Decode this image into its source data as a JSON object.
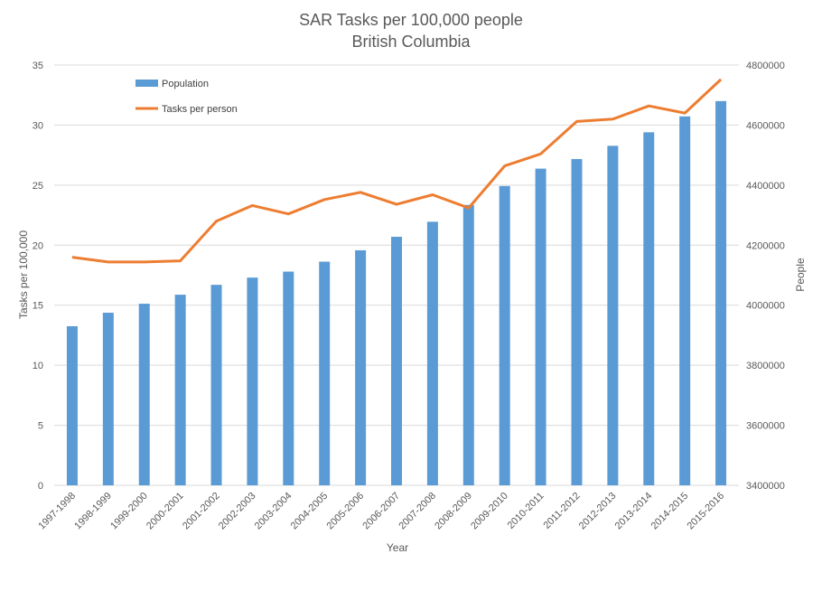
{
  "chart_data": {
    "type": "bar+line",
    "title": "SAR Tasks per 100,000 people",
    "subtitle": "British Columbia",
    "xlabel": "Year",
    "ylabel_left": "Tasks per 100,000",
    "ylabel_right": "People",
    "ylim_left": [
      0,
      35
    ],
    "yticks_left": [
      "0",
      "5",
      "10",
      "15",
      "20",
      "25",
      "30",
      "35"
    ],
    "ylim_right": [
      3400000,
      4800000
    ],
    "yticks_right": [
      "3400000",
      "3600000",
      "3800000",
      "4000000",
      "4200000",
      "4400000",
      "4600000",
      "4800000"
    ],
    "grid": true,
    "legend_position": "top-left",
    "colors": {
      "bar": "#5b9bd5",
      "line": "#ed7d31",
      "grid": "#d9d9d9"
    },
    "categories": [
      "1997-1998",
      "1998-1999",
      "1999-2000",
      "2000-2001",
      "2001-2002",
      "2002-2003",
      "2003-2004",
      "2004-2005",
      "2005-2006",
      "2006-2007",
      "2007-2008",
      "2008-2009",
      "2009-2010",
      "2010-2011",
      "2011-2012",
      "2012-2013",
      "2013-2014",
      "2014-2015",
      "2015-2016"
    ],
    "series": [
      {
        "name": "Population",
        "type": "bar",
        "axis": "right",
        "values": [
          3930000,
          3975000,
          4005000,
          4035000,
          4068000,
          4092000,
          4112000,
          4145000,
          4183000,
          4228000,
          4278000,
          4334000,
          4397000,
          4455000,
          4487000,
          4531000,
          4576000,
          4629000,
          4680000
        ]
      },
      {
        "name": "Tasks per person",
        "type": "line",
        "axis": "left",
        "values": [
          19.0,
          18.6,
          18.6,
          18.7,
          22.0,
          23.3,
          22.6,
          23.8,
          24.4,
          23.4,
          24.2,
          23.1,
          26.6,
          27.6,
          30.3,
          30.5,
          31.6,
          31.0,
          33.8
        ]
      }
    ]
  }
}
